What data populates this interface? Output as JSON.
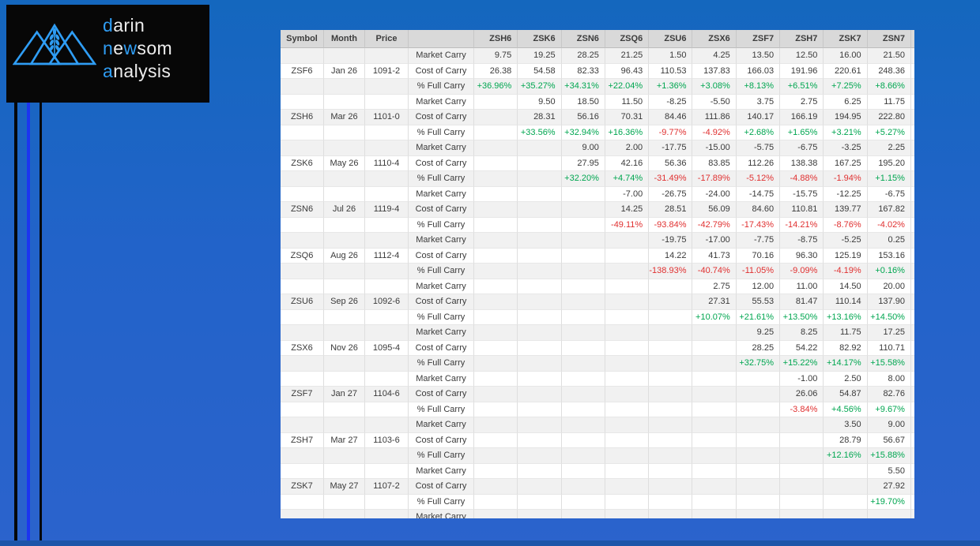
{
  "logo": {
    "lines": [
      {
        "segments": [
          {
            "t": "d",
            "accent": true
          },
          {
            "t": "arin",
            "accent": false
          }
        ]
      },
      {
        "segments": [
          {
            "t": "n",
            "accent": true
          },
          {
            "t": "e",
            "accent": false
          },
          {
            "t": "w",
            "accent": true
          },
          {
            "t": "som",
            "accent": false
          }
        ]
      },
      {
        "segments": [
          {
            "t": "a",
            "accent": true
          },
          {
            "t": "nalysis",
            "accent": false
          }
        ]
      }
    ]
  },
  "colors": {
    "background_top": "#1467be",
    "background_bottom": "#2b63cc",
    "bottom_band": "#1d55a9",
    "logo_accent_blue": "#2f9df4",
    "stripe_bright_blue": "#1c35f0",
    "header_bg": "#d9d9d9",
    "row_alt_bg": "#f1f1f1",
    "positive_green": "#00a650",
    "negative_red": "#e03030"
  },
  "table": {
    "header": [
      "Symbol",
      "Month",
      "Price",
      "",
      "ZSH6",
      "ZSK6",
      "ZSN6",
      "ZSQ6",
      "ZSU6",
      "ZSX6",
      "ZSF7",
      "ZSH7",
      "ZSK7",
      "ZSN7"
    ],
    "row_labels": [
      "Market Carry",
      "Cost of Carry",
      "% Full Carry"
    ],
    "trailing_partial_row_label": "Market Carry",
    "contracts": [
      {
        "symbol": "ZSF6",
        "month": "Jan 26",
        "price": "1091-2",
        "market_carry": [
          "9.75",
          "19.25",
          "28.25",
          "21.25",
          "1.50",
          "4.25",
          "13.50",
          "12.50",
          "16.00",
          "21.50"
        ],
        "cost_of_carry": [
          "26.38",
          "54.58",
          "82.33",
          "96.43",
          "110.53",
          "137.83",
          "166.03",
          "191.96",
          "220.61",
          "248.36"
        ],
        "pct_full_carry": [
          "+36.96%",
          "+35.27%",
          "+34.31%",
          "+22.04%",
          "+1.36%",
          "+3.08%",
          "+8.13%",
          "+6.51%",
          "+7.25%",
          "+8.66%"
        ]
      },
      {
        "symbol": "ZSH6",
        "month": "Mar 26",
        "price": "1101-0",
        "market_carry": [
          "",
          "9.50",
          "18.50",
          "11.50",
          "-8.25",
          "-5.50",
          "3.75",
          "2.75",
          "6.25",
          "11.75"
        ],
        "cost_of_carry": [
          "",
          "28.31",
          "56.16",
          "70.31",
          "84.46",
          "111.86",
          "140.17",
          "166.19",
          "194.95",
          "222.80"
        ],
        "pct_full_carry": [
          "",
          "+33.56%",
          "+32.94%",
          "+16.36%",
          "-9.77%",
          "-4.92%",
          "+2.68%",
          "+1.65%",
          "+3.21%",
          "+5.27%"
        ]
      },
      {
        "symbol": "ZSK6",
        "month": "May 26",
        "price": "1110-4",
        "market_carry": [
          "",
          "",
          "9.00",
          "2.00",
          "-17.75",
          "-15.00",
          "-5.75",
          "-6.75",
          "-3.25",
          "2.25"
        ],
        "cost_of_carry": [
          "",
          "",
          "27.95",
          "42.16",
          "56.36",
          "83.85",
          "112.26",
          "138.38",
          "167.25",
          "195.20"
        ],
        "pct_full_carry": [
          "",
          "",
          "+32.20%",
          "+4.74%",
          "-31.49%",
          "-17.89%",
          "-5.12%",
          "-4.88%",
          "-1.94%",
          "+1.15%"
        ]
      },
      {
        "symbol": "ZSN6",
        "month": "Jul 26",
        "price": "1119-4",
        "market_carry": [
          "",
          "",
          "",
          "-7.00",
          "-26.75",
          "-24.00",
          "-14.75",
          "-15.75",
          "-12.25",
          "-6.75"
        ],
        "cost_of_carry": [
          "",
          "",
          "",
          "14.25",
          "28.51",
          "56.09",
          "84.60",
          "110.81",
          "139.77",
          "167.82"
        ],
        "pct_full_carry": [
          "",
          "",
          "",
          "-49.11%",
          "-93.84%",
          "-42.79%",
          "-17.43%",
          "-14.21%",
          "-8.76%",
          "-4.02%"
        ]
      },
      {
        "symbol": "ZSQ6",
        "month": "Aug 26",
        "price": "1112-4",
        "market_carry": [
          "",
          "",
          "",
          "",
          "-19.75",
          "-17.00",
          "-7.75",
          "-8.75",
          "-5.25",
          "0.25"
        ],
        "cost_of_carry": [
          "",
          "",
          "",
          "",
          "14.22",
          "41.73",
          "70.16",
          "96.30",
          "125.19",
          "153.16"
        ],
        "pct_full_carry": [
          "",
          "",
          "",
          "",
          "-138.93%",
          "-40.74%",
          "-11.05%",
          "-9.09%",
          "-4.19%",
          "+0.16%"
        ]
      },
      {
        "symbol": "ZSU6",
        "month": "Sep 26",
        "price": "1092-6",
        "market_carry": [
          "",
          "",
          "",
          "",
          "",
          "2.75",
          "12.00",
          "11.00",
          "14.50",
          "20.00"
        ],
        "cost_of_carry": [
          "",
          "",
          "",
          "",
          "",
          "27.31",
          "55.53",
          "81.47",
          "110.14",
          "137.90"
        ],
        "pct_full_carry": [
          "",
          "",
          "",
          "",
          "",
          "+10.07%",
          "+21.61%",
          "+13.50%",
          "+13.16%",
          "+14.50%"
        ]
      },
      {
        "symbol": "ZSX6",
        "month": "Nov 26",
        "price": "1095-4",
        "market_carry": [
          "",
          "",
          "",
          "",
          "",
          "",
          "9.25",
          "8.25",
          "11.75",
          "17.25"
        ],
        "cost_of_carry": [
          "",
          "",
          "",
          "",
          "",
          "",
          "28.25",
          "54.22",
          "82.92",
          "110.71"
        ],
        "pct_full_carry": [
          "",
          "",
          "",
          "",
          "",
          "",
          "+32.75%",
          "+15.22%",
          "+14.17%",
          "+15.58%"
        ]
      },
      {
        "symbol": "ZSF7",
        "month": "Jan 27",
        "price": "1104-6",
        "market_carry": [
          "",
          "",
          "",
          "",
          "",
          "",
          "",
          "-1.00",
          "2.50",
          "8.00"
        ],
        "cost_of_carry": [
          "",
          "",
          "",
          "",
          "",
          "",
          "",
          "26.06",
          "54.87",
          "82.76"
        ],
        "pct_full_carry": [
          "",
          "",
          "",
          "",
          "",
          "",
          "",
          "-3.84%",
          "+4.56%",
          "+9.67%"
        ]
      },
      {
        "symbol": "ZSH7",
        "month": "Mar 27",
        "price": "1103-6",
        "market_carry": [
          "",
          "",
          "",
          "",
          "",
          "",
          "",
          "",
          "3.50",
          "9.00"
        ],
        "cost_of_carry": [
          "",
          "",
          "",
          "",
          "",
          "",
          "",
          "",
          "28.79",
          "56.67"
        ],
        "pct_full_carry": [
          "",
          "",
          "",
          "",
          "",
          "",
          "",
          "",
          "+12.16%",
          "+15.88%"
        ]
      },
      {
        "symbol": "ZSK7",
        "month": "May 27",
        "price": "1107-2",
        "market_carry": [
          "",
          "",
          "",
          "",
          "",
          "",
          "",
          "",
          "",
          "5.50"
        ],
        "cost_of_carry": [
          "",
          "",
          "",
          "",
          "",
          "",
          "",
          "",
          "",
          "27.92"
        ],
        "pct_full_carry": [
          "",
          "",
          "",
          "",
          "",
          "",
          "",
          "",
          "",
          "+19.70%"
        ]
      }
    ]
  }
}
